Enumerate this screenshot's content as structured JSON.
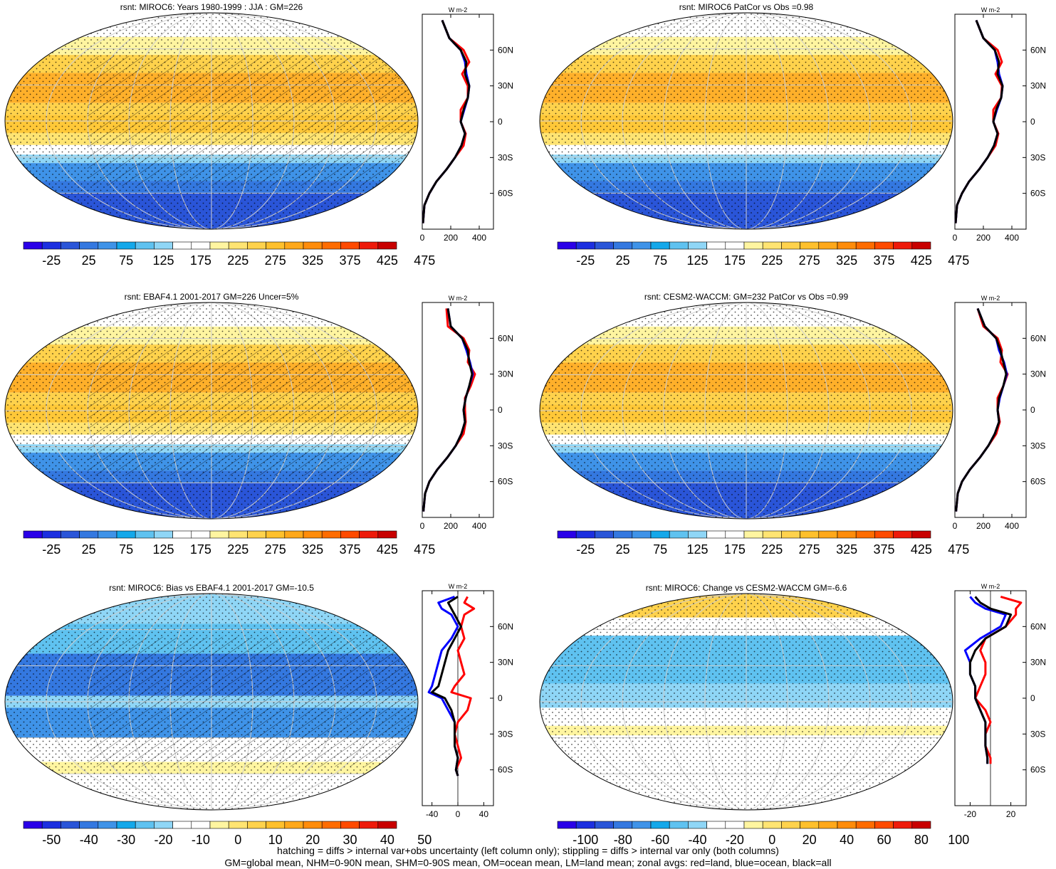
{
  "figure": {
    "footnotes": [
      "hatching = diffs > internal var+obs uncertainty (left column only); stippling = diffs > internal var only (both columns)",
      "GM=global mean, NHM=0-90N mean, SHM=0-90S mean, OM=ocean mean, LM=land mean; zonal avgs: red=land, blue=ocean, black=all"
    ],
    "colors": {
      "land_line": "#ff0000",
      "ocean_line": "#0000ff",
      "all_line": "#000000"
    }
  },
  "chart_data": [
    {
      "type": "heatmap",
      "title": "rsnt: MIROC6: Years 1980-1999 : JJA : GM=226",
      "hatching": true,
      "colorbar": {
        "labels": [
          "-25",
          "25",
          "75",
          "125",
          "175",
          "225",
          "275",
          "325",
          "375",
          "425",
          "475"
        ],
        "colors": [
          "#2a00e8",
          "#1c2fe0",
          "#2a55d8",
          "#3478e0",
          "#3f93e8",
          "#14a8ea",
          "#5fc2f0",
          "#8fd6f6",
          "#ffffff",
          "#ffffff",
          "#fff5a0",
          "#ffe472",
          "#ffd24c",
          "#ffc02c",
          "#ffa81a",
          "#ff8c0a",
          "#ff6c00",
          "#ff4a00",
          "#ee1a0a",
          "#c80000"
        ]
      },
      "zonal_mean": {
        "xlabel_unit": "W m-2",
        "xticks": [
          "0",
          "200",
          "400"
        ],
        "xlim": [
          0,
          500
        ],
        "yticks": [
          "60N",
          "30N",
          "0",
          "30S",
          "60S"
        ],
        "lat_range": [
          -90,
          90
        ],
        "lat": [
          85,
          70,
          60,
          50,
          40,
          30,
          20,
          10,
          0,
          -10,
          -20,
          -30,
          -40,
          -50,
          -60,
          -70,
          -85
        ],
        "series": [
          {
            "role": "all",
            "values": [
              140,
              190,
              270,
              310,
              300,
              330,
              320,
              290,
              270,
              300,
              275,
              230,
              170,
              100,
              50,
              15,
              5
            ]
          },
          {
            "role": "land",
            "values": [
              140,
              190,
              290,
              330,
              280,
              320,
              320,
              270,
              270,
              305,
              290,
              230,
              170,
              100,
              50,
              15,
              5
            ]
          },
          {
            "role": "ocean",
            "values": [
              140,
              190,
              270,
              300,
              310,
              330,
              320,
              295,
              270,
              300,
              275,
              230,
              170,
              100,
              50,
              15,
              5
            ]
          }
        ]
      }
    },
    {
      "type": "heatmap",
      "title": "rsnt: MIROC6 PatCor vs Obs =0.98",
      "hatching": false,
      "colorbar": {
        "labels": [
          "-25",
          "25",
          "75",
          "125",
          "175",
          "225",
          "275",
          "325",
          "375",
          "425",
          "475"
        ],
        "colors": [
          "#2a00e8",
          "#1c2fe0",
          "#2a55d8",
          "#3478e0",
          "#3f93e8",
          "#14a8ea",
          "#5fc2f0",
          "#8fd6f6",
          "#ffffff",
          "#ffffff",
          "#fff5a0",
          "#ffe472",
          "#ffd24c",
          "#ffc02c",
          "#ffa81a",
          "#ff8c0a",
          "#ff6c00",
          "#ff4a00",
          "#ee1a0a",
          "#c80000"
        ]
      },
      "zonal_mean": {
        "xlabel_unit": "W m-2",
        "xticks": [
          "0",
          "200",
          "400"
        ],
        "xlim": [
          0,
          500
        ],
        "yticks": [
          "60N",
          "30N",
          "0",
          "30S",
          "60S"
        ],
        "lat_range": [
          -90,
          90
        ],
        "lat": [
          85,
          70,
          60,
          50,
          40,
          30,
          20,
          10,
          0,
          -10,
          -20,
          -30,
          -40,
          -50,
          -60,
          -70,
          -85
        ],
        "series": [
          {
            "role": "all",
            "values": [
              150,
              200,
              280,
              310,
              300,
              335,
              325,
              290,
              270,
              300,
              275,
              230,
              170,
              100,
              50,
              15,
              5
            ]
          },
          {
            "role": "land",
            "values": [
              150,
              200,
              300,
              330,
              285,
              330,
              325,
              270,
              270,
              305,
              285,
              230,
              170,
              100,
              50,
              15,
              5
            ]
          },
          {
            "role": "ocean",
            "values": [
              150,
              200,
              280,
              300,
              310,
              335,
              325,
              295,
              270,
              300,
              275,
              230,
              170,
              100,
              50,
              15,
              5
            ]
          }
        ]
      }
    },
    {
      "type": "heatmap",
      "title": "rsnt: EBAF4.1 2001-2017 GM=226 Uncer=5%",
      "hatching": true,
      "colorbar": {
        "labels": [
          "-25",
          "25",
          "75",
          "125",
          "175",
          "225",
          "275",
          "325",
          "375",
          "425",
          "475"
        ],
        "colors": [
          "#2a00e8",
          "#1c2fe0",
          "#2a55d8",
          "#3478e0",
          "#3f93e8",
          "#14a8ea",
          "#5fc2f0",
          "#8fd6f6",
          "#ffffff",
          "#ffffff",
          "#fff5a0",
          "#ffe472",
          "#ffd24c",
          "#ffc02c",
          "#ffa81a",
          "#ff8c0a",
          "#ff6c00",
          "#ff4a00",
          "#ee1a0a",
          "#c80000"
        ]
      },
      "zonal_mean": {
        "xlabel_unit": "W m-2",
        "xticks": [
          "0",
          "200",
          "400"
        ],
        "xlim": [
          0,
          500
        ],
        "yticks": [
          "60N",
          "30N",
          "0",
          "30S",
          "60S"
        ],
        "lat_range": [
          -90,
          90
        ],
        "lat": [
          85,
          70,
          60,
          50,
          40,
          30,
          20,
          10,
          0,
          -10,
          -20,
          -30,
          -40,
          -50,
          -60,
          -70,
          -85
        ],
        "series": [
          {
            "role": "all",
            "values": [
              180,
              200,
              280,
              320,
              330,
              350,
              330,
              305,
              290,
              300,
              275,
              235,
              175,
              105,
              50,
              20,
              8
            ]
          },
          {
            "role": "land",
            "values": [
              170,
              180,
              290,
              330,
              320,
              370,
              340,
              300,
              300,
              305,
              290,
              235,
              175,
              105,
              50,
              20,
              8
            ]
          },
          {
            "role": "ocean",
            "values": [
              180,
              200,
              280,
              310,
              335,
              355,
              330,
              305,
              290,
              300,
              275,
              235,
              175,
              105,
              50,
              20,
              8
            ]
          }
        ]
      }
    },
    {
      "type": "heatmap",
      "title": "rsnt: CESM2-WACCM: GM=232 PatCor vs Obs =0.99",
      "hatching": false,
      "colorbar": {
        "labels": [
          "-25",
          "25",
          "75",
          "125",
          "175",
          "225",
          "275",
          "325",
          "375",
          "425",
          "475"
        ],
        "colors": [
          "#2a00e8",
          "#1c2fe0",
          "#2a55d8",
          "#3478e0",
          "#3f93e8",
          "#14a8ea",
          "#5fc2f0",
          "#8fd6f6",
          "#ffffff",
          "#ffffff",
          "#fff5a0",
          "#ffe472",
          "#ffd24c",
          "#ffc02c",
          "#ffa81a",
          "#ff8c0a",
          "#ff6c00",
          "#ff4a00",
          "#ee1a0a",
          "#c80000"
        ]
      },
      "zonal_mean": {
        "xlabel_unit": "W m-2",
        "xticks": [
          "0",
          "200",
          "400"
        ],
        "xlim": [
          0,
          500
        ],
        "yticks": [
          "60N",
          "30N",
          "0",
          "30S",
          "60S"
        ],
        "lat_range": [
          -90,
          90
        ],
        "lat": [
          85,
          70,
          60,
          50,
          40,
          30,
          20,
          10,
          0,
          -10,
          -20,
          -30,
          -40,
          -50,
          -60,
          -70,
          -85
        ],
        "series": [
          {
            "role": "all",
            "values": [
              160,
              210,
              290,
              320,
              340,
              360,
              340,
              310,
              300,
              310,
              280,
              235,
              175,
              105,
              50,
              20,
              8
            ]
          },
          {
            "role": "land",
            "values": [
              160,
              200,
              300,
              330,
              320,
              370,
              340,
              300,
              300,
              315,
              290,
              235,
              175,
              105,
              50,
              20,
              8
            ]
          },
          {
            "role": "ocean",
            "values": [
              160,
              210,
              290,
              310,
              345,
              365,
              340,
              315,
              300,
              310,
              280,
              235,
              175,
              105,
              50,
              20,
              8
            ]
          }
        ]
      }
    },
    {
      "type": "heatmap",
      "title": "rsnt: MIROC6: Bias vs EBAF4.1 2001-2017 GM=-10.5",
      "hatching": true,
      "colorbar": {
        "labels": [
          "-50",
          "-40",
          "-30",
          "-20",
          "-10",
          "0",
          "10",
          "20",
          "30",
          "40",
          "50"
        ],
        "colors": [
          "#2a00e8",
          "#1c2fe0",
          "#2a55d8",
          "#3478e0",
          "#3f93e8",
          "#14a8ea",
          "#5fc2f0",
          "#8fd6f6",
          "#ffffff",
          "#ffffff",
          "#fff5a0",
          "#ffe472",
          "#ffd24c",
          "#ffc02c",
          "#ffa81a",
          "#ff8c0a",
          "#ff6c00",
          "#ff4a00",
          "#ee1a0a",
          "#c80000"
        ]
      },
      "zonal_mean": {
        "xlabel_unit": "W m-2",
        "xticks": [
          "-40",
          "0",
          "40"
        ],
        "xlim": [
          -55,
          55
        ],
        "yticks": [
          "60N",
          "30N",
          "0",
          "30S",
          "60S"
        ],
        "lat_range": [
          -90,
          90
        ],
        "lat": [
          85,
          80,
          75,
          70,
          60,
          50,
          40,
          30,
          20,
          10,
          5,
          0,
          -10,
          -20,
          -30,
          -40,
          -50,
          -60,
          -65
        ],
        "series": [
          {
            "role": "all",
            "values": [
              0,
              -15,
              -10,
              -5,
              5,
              -5,
              -15,
              -20,
              -25,
              -30,
              -40,
              -20,
              -10,
              -5,
              -5,
              -5,
              0,
              -3,
              0
            ]
          },
          {
            "role": "land",
            "values": [
              15,
              10,
              25,
              10,
              5,
              10,
              0,
              5,
              10,
              -5,
              -10,
              20,
              15,
              0,
              -5,
              0,
              5,
              -3,
              0
            ]
          },
          {
            "role": "ocean",
            "values": [
              -5,
              -30,
              -25,
              -10,
              0,
              -10,
              -25,
              -30,
              -35,
              -40,
              -45,
              -25,
              -15,
              -5,
              -5,
              -5,
              0,
              -3,
              0
            ]
          }
        ]
      }
    },
    {
      "type": "heatmap",
      "title": "rsnt: MIROC6: Change vs CESM2-WACCM GM=-6.6",
      "hatching": false,
      "colorbar": {
        "labels": [
          "-100",
          "-80",
          "-60",
          "-40",
          "-20",
          "0",
          "20",
          "40",
          "60",
          "80",
          "100"
        ],
        "colors": [
          "#2a00e8",
          "#1c2fe0",
          "#2a55d8",
          "#3478e0",
          "#3f93e8",
          "#14a8ea",
          "#5fc2f0",
          "#8fd6f6",
          "#ffffff",
          "#ffffff",
          "#fff5a0",
          "#ffe472",
          "#ffd24c",
          "#ffc02c",
          "#ffa81a",
          "#ff8c0a",
          "#ff6c00",
          "#ff4a00",
          "#ee1a0a",
          "#c80000"
        ]
      },
      "zonal_mean": {
        "xlabel_unit": "W m-2",
        "xticks": [
          "-20",
          "20"
        ],
        "xlim": [
          -35,
          35
        ],
        "yticks": [
          "60N",
          "30N",
          "0",
          "30S",
          "60S"
        ],
        "lat_range": [
          -90,
          90
        ],
        "lat": [
          85,
          80,
          75,
          70,
          60,
          50,
          40,
          30,
          20,
          10,
          0,
          -10,
          -20,
          -30,
          -40,
          -50,
          -55
        ],
        "series": [
          {
            "role": "all",
            "values": [
              -15,
              -10,
              0,
              20,
              15,
              -5,
              -15,
              -20,
              -20,
              -15,
              -15,
              -10,
              -5,
              -5,
              -5,
              -3,
              -3
            ]
          },
          {
            "role": "land",
            "values": [
              10,
              30,
              25,
              25,
              15,
              -5,
              -10,
              -5,
              -5,
              -10,
              -15,
              -5,
              0,
              -5,
              -5,
              0,
              0
            ]
          },
          {
            "role": "ocean",
            "values": [
              -20,
              -15,
              -5,
              15,
              10,
              -10,
              -25,
              -20,
              -20,
              -15,
              -15,
              -10,
              -5,
              -5,
              -5,
              -3,
              -3
            ]
          }
        ]
      }
    }
  ]
}
